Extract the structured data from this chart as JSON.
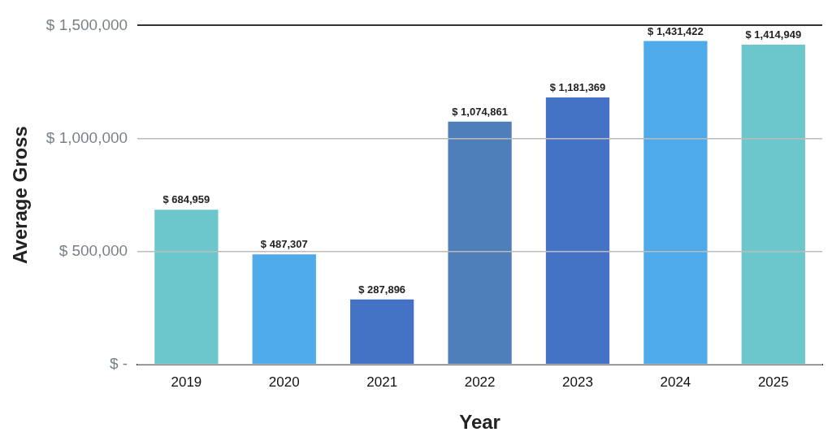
{
  "chart_data": {
    "type": "bar",
    "xlabel": "Year",
    "ylabel": "Average Gross",
    "categories": [
      "2019",
      "2020",
      "2021",
      "2022",
      "2023",
      "2024",
      "2025"
    ],
    "values": [
      684959,
      487307,
      287896,
      1074861,
      1181369,
      1431422,
      1414949
    ],
    "colors": [
      "#6cc7cc",
      "#4eaae8",
      "#4472c4",
      "#4f7fb8",
      "#4472c4",
      "#4eaae8",
      "#6cc7cc"
    ],
    "value_labels": [
      "$ 684,959",
      "$ 487,307",
      "$ 287,896",
      "$ 1,074,861",
      "$ 1,181,369",
      "$ 1,431,422",
      "$ 1,414,949"
    ],
    "ylim": [
      0,
      1500000
    ],
    "yticks": [
      {
        "value": 0,
        "label": "$ -"
      },
      {
        "value": 500000,
        "label": "$ 500,000"
      },
      {
        "value": 1000000,
        "label": "$ 1,000,000"
      },
      {
        "value": 1500000,
        "label": "$ 1,500,000"
      }
    ],
    "grid": "y",
    "legend": false
  }
}
